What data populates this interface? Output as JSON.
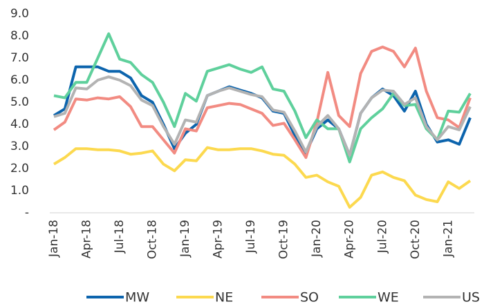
{
  "chart_data": {
    "type": "line",
    "categories": [
      "Jan-18",
      null,
      null,
      "Apr-18",
      null,
      null,
      "Jul-18",
      null,
      null,
      "Oct-18",
      null,
      null,
      "Jan-19",
      null,
      null,
      "Apr-19",
      null,
      null,
      "Jul-19",
      null,
      null,
      "Oct-19",
      null,
      null,
      "Jan-20",
      null,
      null,
      "Apr-20",
      null,
      null,
      "Jul-20",
      null,
      null,
      "Oct-20",
      null,
      null,
      "Jan-21",
      null,
      null
    ],
    "series": [
      {
        "name": "MW",
        "color": "#0c64ad",
        "values": [
          4.4,
          4.7,
          6.6,
          6.6,
          6.6,
          6.4,
          6.4,
          6.1,
          5.3,
          5.0,
          4.0,
          2.9,
          3.6,
          4.0,
          5.3,
          5.5,
          5.7,
          5.55,
          5.4,
          5.2,
          4.6,
          4.5,
          3.5,
          2.7,
          3.8,
          4.2,
          3.8,
          2.6,
          4.5,
          5.2,
          5.6,
          5.3,
          4.6,
          5.5,
          4.0,
          3.2,
          3.3,
          3.1,
          4.3
        ]
      },
      {
        "name": "NE",
        "color": "#fcd94f",
        "values": [
          2.2,
          2.5,
          2.9,
          2.9,
          2.85,
          2.85,
          2.8,
          2.65,
          2.7,
          2.8,
          2.2,
          1.9,
          2.4,
          2.35,
          2.95,
          2.85,
          2.85,
          2.9,
          2.9,
          2.8,
          2.65,
          2.6,
          2.2,
          1.6,
          1.7,
          1.4,
          1.2,
          0.25,
          0.7,
          1.7,
          1.85,
          1.6,
          1.45,
          0.8,
          0.6,
          0.5,
          1.4,
          1.1,
          1.45
        ]
      },
      {
        "name": "SO",
        "color": "#f28b82",
        "values": [
          3.75,
          4.1,
          5.15,
          5.1,
          5.2,
          5.15,
          5.25,
          4.8,
          3.9,
          3.9,
          3.3,
          2.7,
          3.8,
          3.7,
          4.75,
          4.85,
          4.95,
          4.9,
          4.7,
          4.5,
          3.95,
          4.05,
          3.3,
          2.5,
          4.1,
          6.35,
          4.4,
          3.9,
          6.3,
          7.3,
          7.5,
          7.3,
          6.6,
          7.45,
          5.5,
          4.3,
          4.2,
          3.85,
          5.2
        ]
      },
      {
        "name": "WE",
        "color": "#5fd09c",
        "values": [
          5.3,
          5.2,
          5.9,
          5.9,
          7.0,
          8.1,
          6.95,
          6.8,
          6.25,
          5.9,
          5.0,
          3.9,
          5.4,
          5.05,
          6.4,
          6.55,
          6.7,
          6.5,
          6.35,
          6.6,
          5.6,
          5.5,
          4.6,
          3.4,
          4.2,
          3.8,
          3.8,
          2.3,
          3.8,
          4.3,
          4.7,
          5.4,
          4.85,
          4.9,
          3.8,
          3.3,
          4.6,
          4.55,
          5.4
        ]
      },
      {
        "name": "US",
        "color": "#b3b3b3",
        "values": [
          4.35,
          4.5,
          5.65,
          5.6,
          6.0,
          6.15,
          6.0,
          5.75,
          5.1,
          4.85,
          3.9,
          3.1,
          4.2,
          4.1,
          5.3,
          5.5,
          5.65,
          5.5,
          5.35,
          5.25,
          4.65,
          4.55,
          3.7,
          2.75,
          3.9,
          4.4,
          3.8,
          2.6,
          4.5,
          5.2,
          5.55,
          5.5,
          4.9,
          5.2,
          3.9,
          3.3,
          3.9,
          3.75,
          4.8
        ]
      }
    ],
    "ylim": [
      0,
      9
    ],
    "yticks": [
      {
        "value": 0,
        "label": "-"
      },
      {
        "value": 1,
        "label": "1.0"
      },
      {
        "value": 2,
        "label": "2.0"
      },
      {
        "value": 3,
        "label": "3.0"
      },
      {
        "value": 4,
        "label": "4.0"
      },
      {
        "value": 5,
        "label": "5.0"
      },
      {
        "value": 6,
        "label": "6.0"
      },
      {
        "value": 7,
        "label": "7.0"
      },
      {
        "value": 8,
        "label": "8.0"
      },
      {
        "value": 9,
        "label": "9.0"
      }
    ],
    "grid": false,
    "legend": "bottom"
  }
}
